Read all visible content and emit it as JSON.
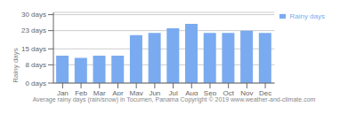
{
  "chart_data": {
    "type": "bar",
    "categories": [
      "Jan",
      "Feb",
      "Mar",
      "Apr",
      "May",
      "Jun",
      "Jul",
      "Aug",
      "Sep",
      "Oct",
      "Nov",
      "Dec"
    ],
    "series": [
      {
        "name": "Rainy days",
        "color": "#7aabf0",
        "values": [
          12,
          11,
          12,
          12,
          21,
          22,
          24,
          26,
          22,
          22,
          23,
          22
        ]
      }
    ],
    "ylabel": "Rainy days",
    "ylim": [
      0,
      31
    ],
    "yticks": [
      {
        "value": 0,
        "label": "0 days"
      },
      {
        "value": 8,
        "label": "8 days"
      },
      {
        "value": 15,
        "label": "15 days"
      },
      {
        "value": 23,
        "label": "23 days"
      },
      {
        "value": 30,
        "label": "30 days"
      }
    ],
    "grid": true,
    "legend": "upper right",
    "annotations": [
      "Average rainy days (rain/snow) in Tocumen, Panama   Copyright © 2019 www.weather-and-climate.com"
    ]
  }
}
